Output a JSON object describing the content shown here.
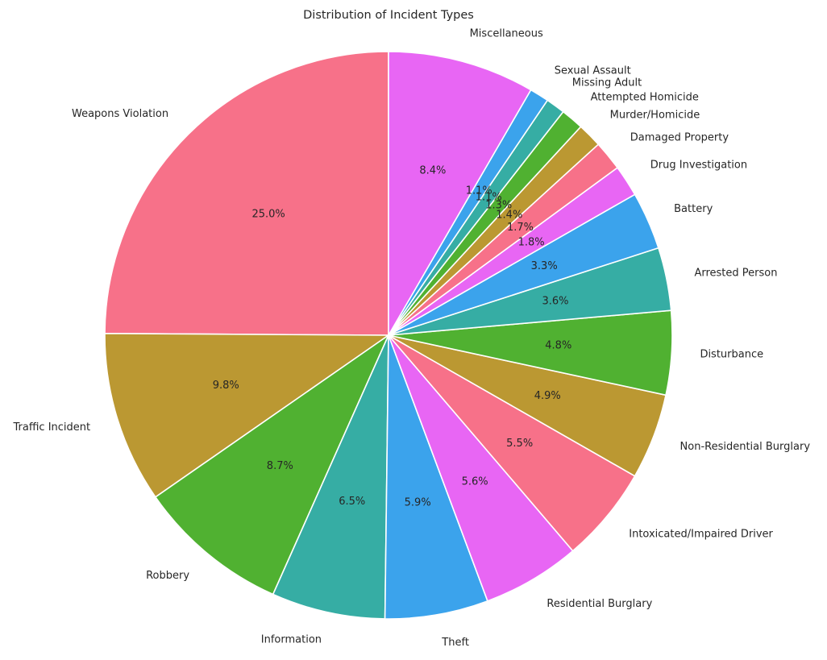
{
  "chart_data": {
    "type": "pie",
    "title": "Distribution of Incident Types",
    "start_angle_deg": 90,
    "direction": "counterclockwise",
    "slices": [
      {
        "label": "Weapons Violation",
        "value": 25.0,
        "pct_label": "25.0%",
        "color": "#f77189"
      },
      {
        "label": "Traffic Incident",
        "value": 9.8,
        "pct_label": "9.8%",
        "color": "#bb9832"
      },
      {
        "label": "Robbery",
        "value": 8.7,
        "pct_label": "8.7%",
        "color": "#50b131"
      },
      {
        "label": "Information",
        "value": 6.5,
        "pct_label": "6.5%",
        "color": "#36ada4"
      },
      {
        "label": "Theft",
        "value": 5.9,
        "pct_label": "5.9%",
        "color": "#3ba3ec"
      },
      {
        "label": "Residential Burglary",
        "value": 5.6,
        "pct_label": "5.6%",
        "color": "#e866f4"
      },
      {
        "label": "Intoxicated/Impaired Driver",
        "value": 5.5,
        "pct_label": "5.5%",
        "color": "#f77189"
      },
      {
        "label": "Non-Residential Burglary",
        "value": 4.9,
        "pct_label": "4.9%",
        "color": "#bb9832"
      },
      {
        "label": "Disturbance",
        "value": 4.8,
        "pct_label": "4.8%",
        "color": "#50b131"
      },
      {
        "label": "Arrested Person",
        "value": 3.6,
        "pct_label": "3.6%",
        "color": "#36ada4"
      },
      {
        "label": "Battery",
        "value": 3.3,
        "pct_label": "3.3%",
        "color": "#3ba3ec"
      },
      {
        "label": "Drug Investigation",
        "value": 1.8,
        "pct_label": "1.8%",
        "color": "#e866f4"
      },
      {
        "label": "Damaged Property",
        "value": 1.7,
        "pct_label": "1.7%",
        "color": "#f77189"
      },
      {
        "label": "Murder/Homicide",
        "value": 1.4,
        "pct_label": "1.4%",
        "color": "#bb9832"
      },
      {
        "label": "Attempted Homicide",
        "value": 1.3,
        "pct_label": "1.3%",
        "color": "#50b131"
      },
      {
        "label": "Missing Adult",
        "value": 1.1,
        "pct_label": "1.1%",
        "color": "#36ada4"
      },
      {
        "label": "Sexual Assault",
        "value": 1.1,
        "pct_label": "1.1%",
        "color": "#3ba3ec"
      },
      {
        "label": "Miscellaneous",
        "value": 8.4,
        "pct_label": "8.4%",
        "color": "#e866f4"
      }
    ]
  }
}
